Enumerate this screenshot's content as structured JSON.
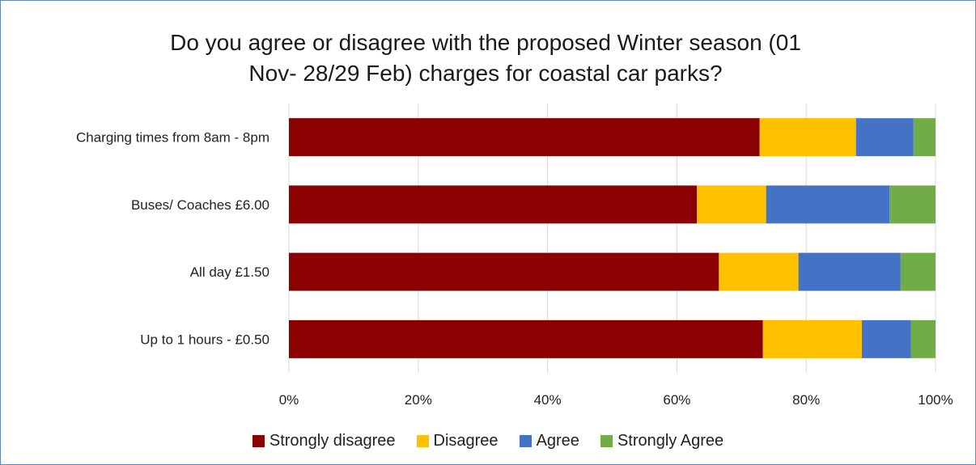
{
  "chart_data": {
    "type": "bar",
    "orientation": "horizontal",
    "stacked": "percent",
    "title": "Do you agree or disagree with the proposed Winter season (01 Nov- 28/29 Feb) charges for coastal car parks?",
    "title_lines": [
      "Do you agree or disagree with the proposed Winter season (01",
      "Nov- 28/29 Feb) charges for coastal car parks?"
    ],
    "categories": [
      "Charging times from 8am - 8pm",
      "Buses/ Coaches £6.00",
      "All day £1.50",
      "Up to 1 hours - £0.50"
    ],
    "series": [
      {
        "name": "Strongly disagree",
        "color": "#8b0000",
        "values": [
          72.8,
          63.1,
          66.5,
          73.3
        ]
      },
      {
        "name": "Disagree",
        "color": "#ffc000",
        "values": [
          14.9,
          10.7,
          12.3,
          15.3
        ]
      },
      {
        "name": "Agree",
        "color": "#4472c4",
        "values": [
          8.9,
          19.1,
          15.8,
          7.6
        ]
      },
      {
        "name": "Strongly Agree",
        "color": "#70ad47",
        "values": [
          3.4,
          7.1,
          5.4,
          3.8
        ]
      }
    ],
    "x_ticks": [
      "0%",
      "20%",
      "40%",
      "60%",
      "80%",
      "100%"
    ],
    "xlim": [
      0,
      100
    ],
    "grid": true,
    "legend_position": "bottom"
  }
}
